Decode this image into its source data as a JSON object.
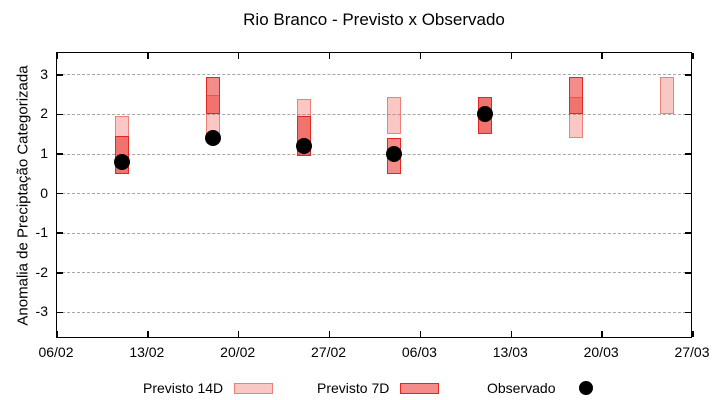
{
  "title": "Rio Branco - Previsto x Observado",
  "y_axis": {
    "label": "Anomalia de Preciptação Categorizada",
    "tick_values": [
      3,
      2,
      1,
      0,
      -1,
      -2,
      -3
    ],
    "tick_labels": [
      "3",
      "2",
      "1",
      "0",
      "-1",
      "-2",
      "-3"
    ]
  },
  "x_axis": {
    "tick_labels": [
      "06/02",
      "13/02",
      "20/02",
      "27/02",
      "06/03",
      "13/03",
      "20/03",
      "27/03"
    ],
    "tick_offsets": [
      0,
      7,
      14,
      21,
      28,
      35,
      42,
      49
    ]
  },
  "legend": [
    {
      "label": "Previsto 14D",
      "sample": "box-light"
    },
    {
      "label": "Previsto 7D",
      "sample": "box-dark"
    },
    {
      "label": "Observado",
      "sample": "dot"
    }
  ],
  "colors": {
    "frame": "#000000",
    "grid": "#a6a6a6",
    "previsto_14d_fill": "rgba(237,80,70,0.32)",
    "previsto_14d_border": "rgba(230,70,60,0.55)",
    "previsto_7d_fill": "rgba(235,45,40,0.55)",
    "previsto_7d_border": "#e62520",
    "observado": "#000000"
  },
  "chart_data": {
    "type": "candlestick-range-and-scatter",
    "title": "Rio Branco - Previsto x Observado",
    "xlabel": "",
    "ylabel": "Anomalia de Preciptação Categorizada",
    "ylim": [
      -3.67,
      3.55
    ],
    "xlim_day_offsets": [
      0,
      49
    ],
    "grid": "dashed horizontal at integer y values",
    "legend_position": "below chart, centered row",
    "series_names": [
      "Previsto 14D",
      "Previsto 7D",
      "Observado"
    ],
    "points": [
      {
        "date": "11/02",
        "day_offset": 5,
        "previsto_14d": [
          0.5,
          1.95
        ],
        "previsto_7d": [
          0.5,
          1.45
        ],
        "observado": 0.8
      },
      {
        "date": "18/02",
        "day_offset": 12,
        "previsto_14d": [
          1.45,
          2.5
        ],
        "previsto_7d": [
          2.0,
          2.95
        ],
        "observado": 1.4
      },
      {
        "date": "25/02",
        "day_offset": 19,
        "previsto_14d": [
          0.95,
          2.4
        ],
        "previsto_7d": [
          0.95,
          1.95
        ],
        "observado": 1.2
      },
      {
        "date": "04/03",
        "day_offset": 26,
        "previsto_14d": [
          1.5,
          2.45
        ],
        "previsto_7d": [
          0.5,
          1.4
        ],
        "observado": 1.0
      },
      {
        "date": "11/03",
        "day_offset": 33,
        "previsto_14d": [
          1.5,
          2.45
        ],
        "previsto_7d": [
          1.5,
          2.45
        ],
        "observado": 2.0
      },
      {
        "date": "18/03",
        "day_offset": 40,
        "previsto_14d": [
          1.4,
          2.45
        ],
        "previsto_7d": [
          2.0,
          2.95
        ],
        "observado": null
      },
      {
        "date": "25/03",
        "day_offset": 47,
        "previsto_14d": [
          2.0,
          2.95
        ],
        "previsto_7d": null,
        "observado": null
      }
    ]
  }
}
